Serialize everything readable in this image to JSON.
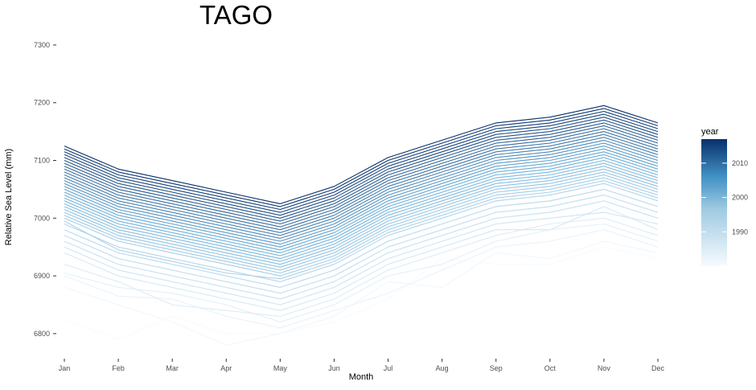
{
  "chart_data": {
    "type": "line",
    "title": "TAGO",
    "xlabel": "Month",
    "ylabel": "Relative Sea Level (mm)",
    "categories": [
      "Jan",
      "Feb",
      "Mar",
      "Apr",
      "May",
      "Jun",
      "Jul",
      "Aug",
      "Sep",
      "Oct",
      "Nov",
      "Dec"
    ],
    "ylim": [
      6765,
      7325
    ],
    "yticks": [
      6800,
      6900,
      7000,
      7100,
      7200,
      7300
    ],
    "grid": false,
    "legend": {
      "title": "year",
      "position": "right",
      "ticks": [
        1990,
        2000,
        2010
      ],
      "range": [
        1980,
        2017
      ]
    },
    "color_scale": {
      "low": "#f7fbff",
      "mid": "#6baed6",
      "high": "#08306b"
    },
    "series": [
      {
        "year": 1980,
        "values": [
          6825,
          6790,
          6830,
          6800,
          6800,
          6820,
          6860,
          6930,
          6920,
          6920,
          6950,
          6930
        ]
      },
      {
        "year": 1981,
        "values": [
          6880,
          6850,
          6820,
          6780,
          6800,
          6830,
          6890,
          6880,
          6940,
          6930,
          6960,
          6940
        ]
      },
      {
        "year": 1982,
        "values": [
          6900,
          6865,
          6860,
          6830,
          6810,
          6840,
          6870,
          6910,
          6950,
          6960,
          6980,
          6950
        ]
      },
      {
        "year": 1983,
        "values": [
          6905,
          6880,
          6870,
          6850,
          6820,
          6850,
          6900,
          6920,
          6960,
          6980,
          6990,
          6960
        ]
      },
      {
        "year": 1984,
        "values": [
          6920,
          6890,
          6850,
          6840,
          6830,
          6860,
          6910,
          6940,
          6970,
          6990,
          7000,
          6970
        ]
      },
      {
        "year": 1985,
        "values": [
          6940,
          6900,
          6880,
          6860,
          6840,
          6870,
          6920,
          6950,
          6980,
          6980,
          7020,
          6980
        ]
      },
      {
        "year": 1986,
        "values": [
          6950,
          6910,
          6890,
          6870,
          6850,
          6880,
          6930,
          6960,
          6990,
          7000,
          7010,
          6990
        ]
      },
      {
        "year": 1987,
        "values": [
          6960,
          6920,
          6900,
          6880,
          6860,
          6890,
          6940,
          6970,
          7000,
          7010,
          7030,
          7000
        ]
      },
      {
        "year": 1988,
        "values": [
          6970,
          6930,
          6910,
          6890,
          6870,
          6900,
          6950,
          6980,
          7010,
          7020,
          7040,
          7010
        ]
      },
      {
        "year": 1989,
        "values": [
          6980,
          6940,
          6920,
          6900,
          6880,
          6910,
          6960,
          6990,
          7020,
          7030,
          7050,
          7020
        ]
      },
      {
        "year": 1990,
        "values": [
          6990,
          6950,
          6930,
          6910,
          6890,
          6920,
          6970,
          7000,
          7030,
          7040,
          7060,
          7030
        ]
      },
      {
        "year": 1991,
        "values": [
          6995,
          6945,
          6925,
          6905,
          6895,
          6925,
          6975,
          7005,
          7035,
          7045,
          7065,
          7035
        ]
      },
      {
        "year": 1992,
        "values": [
          7000,
          6960,
          6940,
          6920,
          6900,
          6930,
          6980,
          7010,
          7040,
          7050,
          7070,
          7040
        ]
      },
      {
        "year": 1993,
        "values": [
          7005,
          6965,
          6945,
          6925,
          6905,
          6935,
          6985,
          7015,
          7045,
          7055,
          7075,
          7045
        ]
      },
      {
        "year": 1994,
        "values": [
          7010,
          6970,
          6950,
          6930,
          6910,
          6940,
          6990,
          7020,
          7050,
          7060,
          7080,
          7050
        ]
      },
      {
        "year": 1995,
        "values": [
          7015,
          6975,
          6955,
          6935,
          6915,
          6945,
          6995,
          7025,
          7055,
          7065,
          7085,
          7055
        ]
      },
      {
        "year": 1996,
        "values": [
          7020,
          6980,
          6960,
          6940,
          6920,
          6950,
          7000,
          7030,
          7060,
          7070,
          7090,
          7060
        ]
      },
      {
        "year": 1997,
        "values": [
          7025,
          6985,
          6965,
          6945,
          6925,
          6955,
          7005,
          7035,
          7065,
          7075,
          7095,
          7065
        ]
      },
      {
        "year": 1998,
        "values": [
          7030,
          6990,
          6970,
          6950,
          6930,
          6960,
          7010,
          7040,
          7070,
          7080,
          7100,
          7070
        ]
      },
      {
        "year": 1999,
        "values": [
          7035,
          6995,
          6975,
          6955,
          6935,
          6965,
          7015,
          7045,
          7075,
          7085,
          7105,
          7075
        ]
      },
      {
        "year": 2000,
        "values": [
          7040,
          7000,
          6980,
          6960,
          6940,
          6970,
          7020,
          7050,
          7080,
          7090,
          7110,
          7080
        ]
      },
      {
        "year": 2001,
        "values": [
          7045,
          7005,
          6985,
          6965,
          6945,
          6975,
          7025,
          7055,
          7085,
          7095,
          7115,
          7085
        ]
      },
      {
        "year": 2002,
        "values": [
          7050,
          7010,
          6990,
          6970,
          6950,
          6980,
          7030,
          7060,
          7090,
          7100,
          7120,
          7090
        ]
      },
      {
        "year": 2003,
        "values": [
          7055,
          7015,
          6995,
          6975,
          6955,
          6985,
          7035,
          7065,
          7095,
          7105,
          7125,
          7095
        ]
      },
      {
        "year": 2004,
        "values": [
          7060,
          7020,
          7000,
          6980,
          6960,
          6990,
          7040,
          7070,
          7100,
          7110,
          7130,
          7100
        ]
      },
      {
        "year": 2005,
        "values": [
          7065,
          7025,
          7005,
          6985,
          6965,
          6995,
          7045,
          7075,
          7105,
          7115,
          7135,
          7105
        ]
      },
      {
        "year": 2006,
        "values": [
          7070,
          7030,
          7010,
          6990,
          6970,
          7000,
          7050,
          7080,
          7110,
          7120,
          7140,
          7110
        ]
      },
      {
        "year": 2007,
        "values": [
          7075,
          7035,
          7015,
          6995,
          6975,
          7005,
          7055,
          7085,
          7115,
          7125,
          7145,
          7115
        ]
      },
      {
        "year": 2008,
        "values": [
          7080,
          7040,
          7020,
          7000,
          6980,
          7010,
          7060,
          7090,
          7120,
          7130,
          7150,
          7120
        ]
      },
      {
        "year": 2009,
        "values": [
          7085,
          7045,
          7025,
          7005,
          6985,
          7015,
          7065,
          7095,
          7125,
          7135,
          7155,
          7125
        ]
      },
      {
        "year": 2010,
        "values": [
          7090,
          7050,
          7030,
          7010,
          6990,
          7020,
          7070,
          7100,
          7130,
          7140,
          7160,
          7130
        ]
      },
      {
        "year": 2011,
        "values": [
          7095,
          7055,
          7035,
          7015,
          6995,
          7025,
          7075,
          7105,
          7135,
          7145,
          7165,
          7135
        ]
      },
      {
        "year": 2012,
        "values": [
          7100,
          7060,
          7040,
          7020,
          7000,
          7030,
          7080,
          7110,
          7140,
          7150,
          7170,
          7140
        ]
      },
      {
        "year": 2013,
        "values": [
          7105,
          7065,
          7045,
          7025,
          7005,
          7035,
          7085,
          7115,
          7145,
          7155,
          7175,
          7145
        ]
      },
      {
        "year": 2014,
        "values": [
          7110,
          7070,
          7050,
          7030,
          7010,
          7040,
          7090,
          7120,
          7150,
          7160,
          7180,
          7150
        ]
      },
      {
        "year": 2015,
        "values": [
          7115,
          7075,
          7055,
          7035,
          7015,
          7045,
          7095,
          7125,
          7155,
          7165,
          7185,
          7155
        ]
      },
      {
        "year": 2016,
        "values": [
          7120,
          7080,
          7060,
          7040,
          7020,
          7050,
          7100,
          7130,
          7160,
          7170,
          7190,
          7160
        ]
      },
      {
        "year": 2017,
        "values": [
          7125,
          7085,
          7065,
          7045,
          7025,
          7055,
          7105,
          7135,
          7165,
          7175,
          7195,
          7165
        ]
      }
    ]
  }
}
